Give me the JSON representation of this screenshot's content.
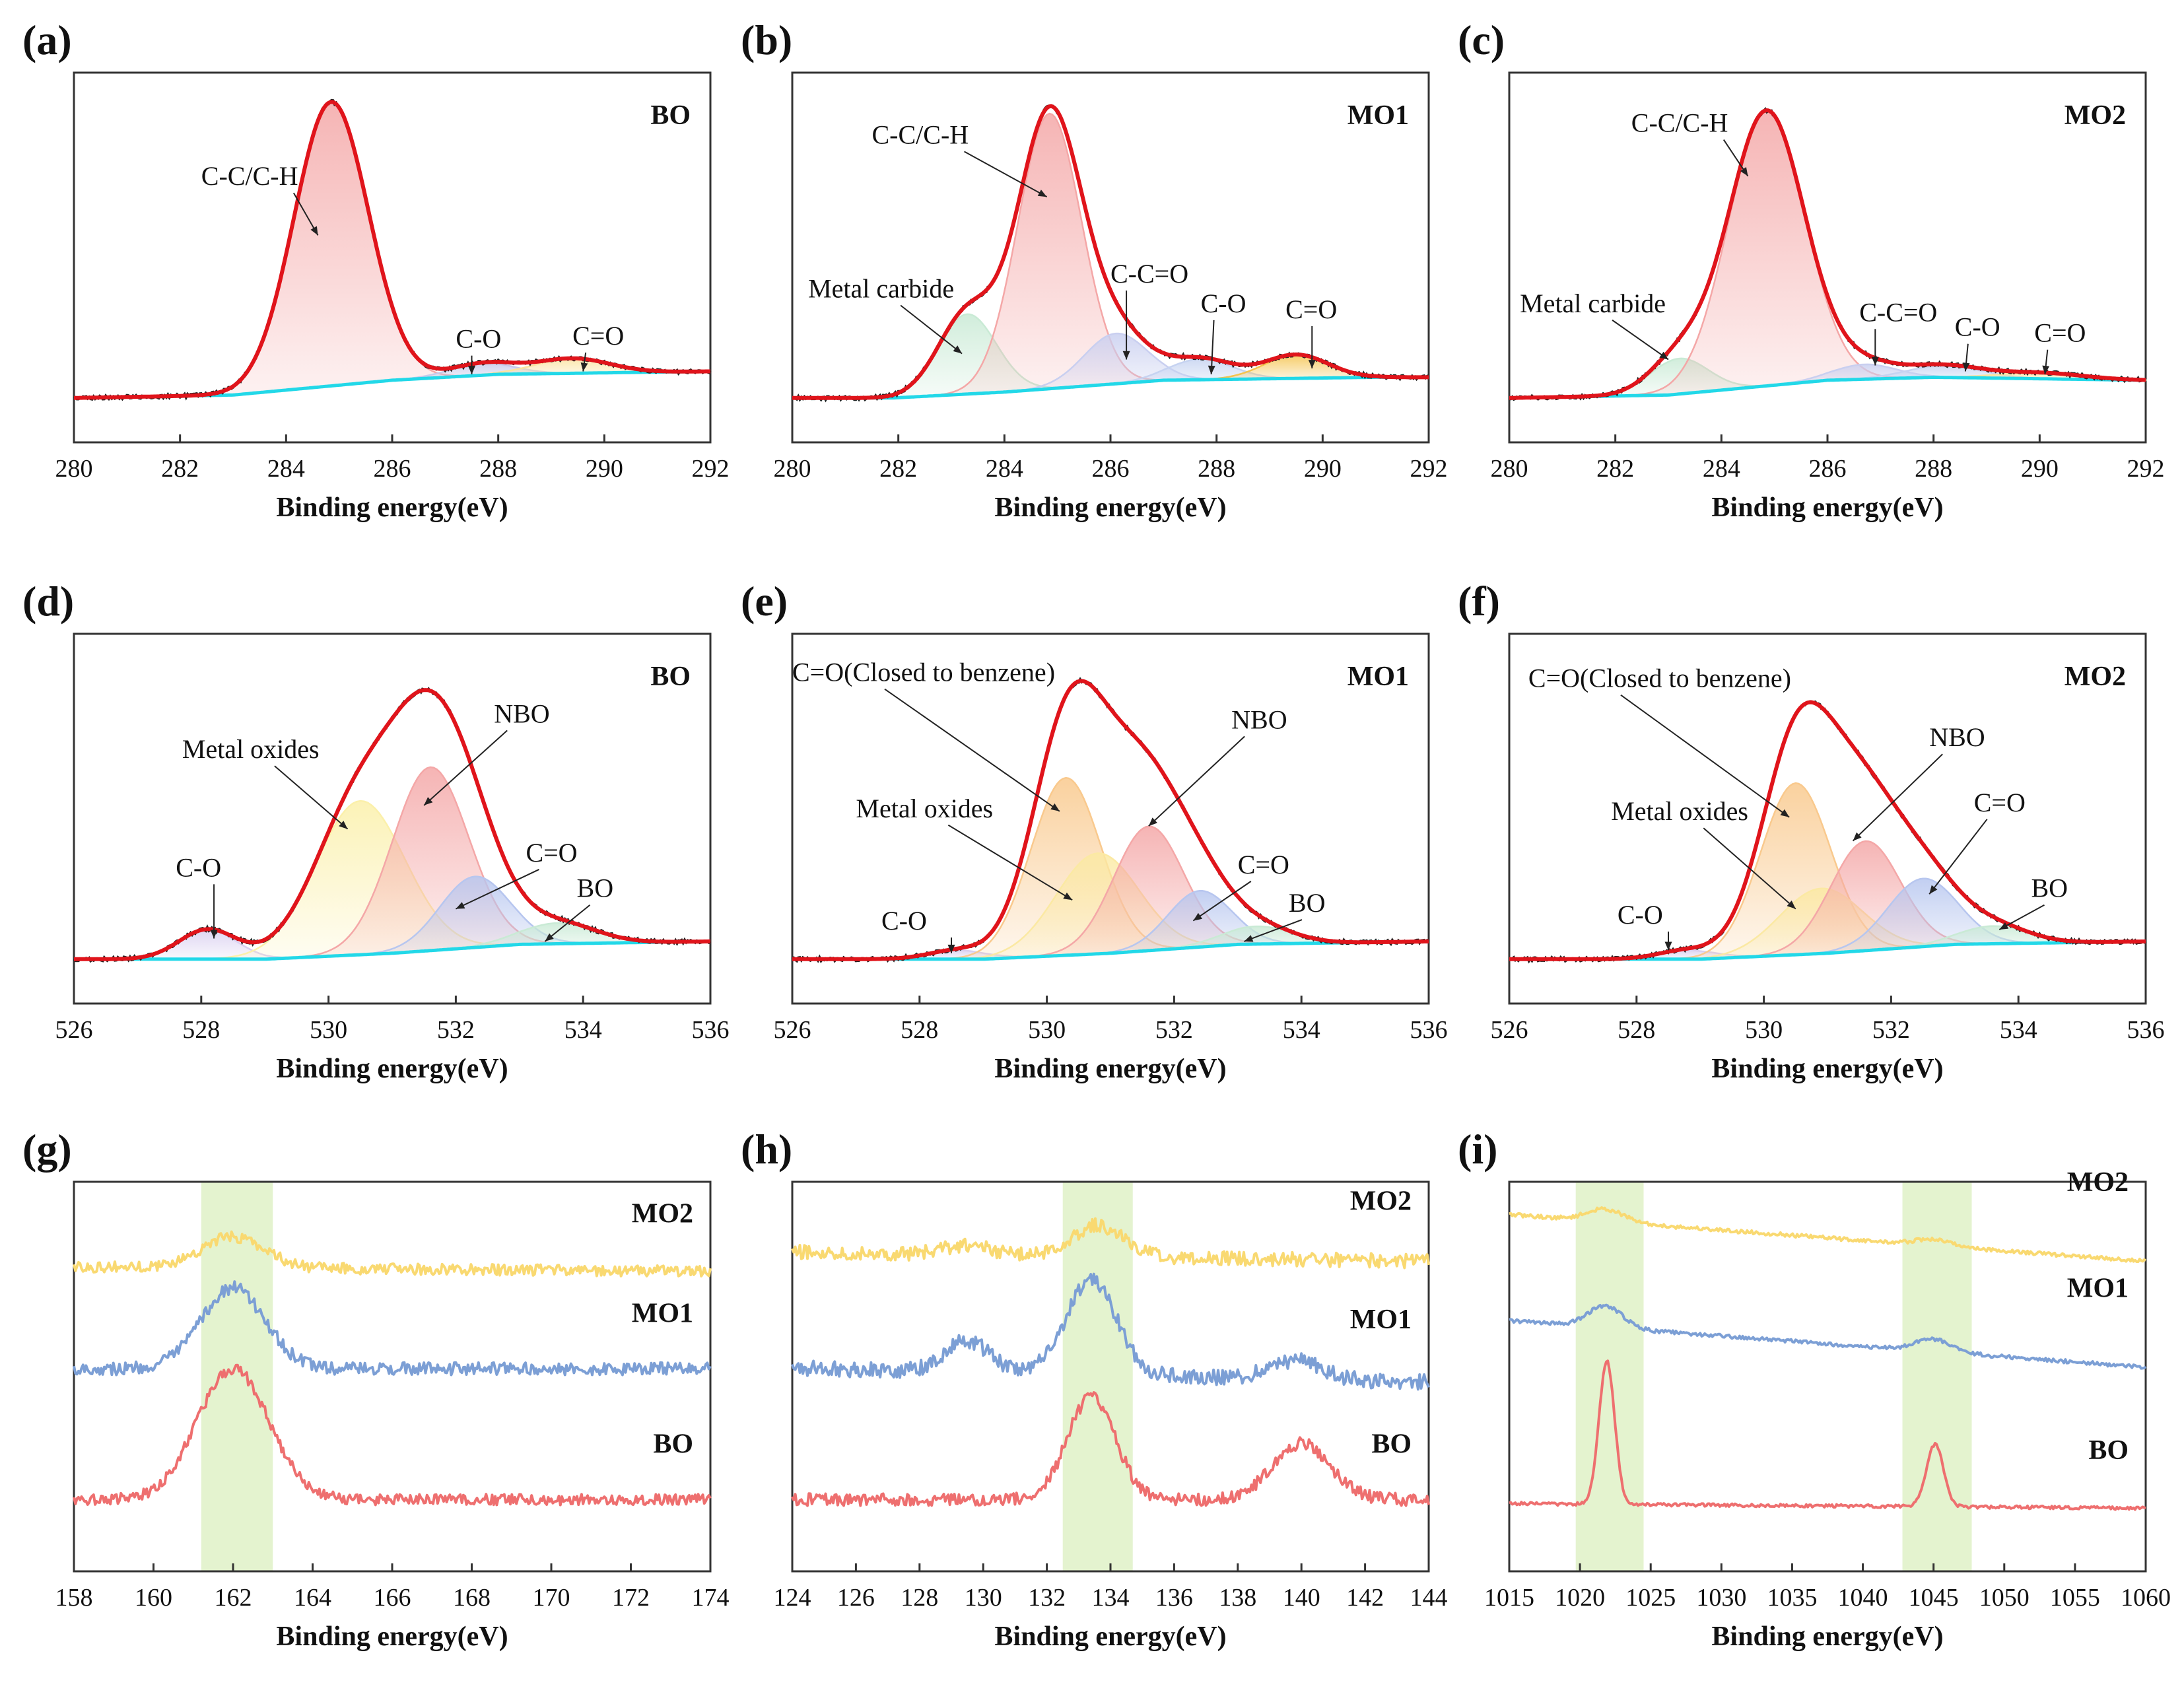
{
  "figure": {
    "colors": {
      "envelope": "#e0141b",
      "raw": "#222222",
      "baseline": "#22d8e8",
      "yellow": "#f9d971",
      "blue": "#7c9fd5",
      "red": "#ee6f6f",
      "band": "#e4f3cf"
    }
  },
  "chart_data": [
    {
      "id": "a",
      "panel": "(a)",
      "type": "line",
      "sample": "BO",
      "xlabel": "Binding energy(eV)",
      "xlim": [
        280,
        292
      ],
      "ticks": [
        "280",
        "282",
        "284",
        "286",
        "288",
        "290",
        "292"
      ],
      "baseline": [
        [
          280,
          0.0
        ],
        [
          283,
          0.01
        ],
        [
          286,
          0.06
        ],
        [
          288,
          0.08
        ],
        [
          292,
          0.09
        ]
      ],
      "components": [
        {
          "name": "C-C/C-H",
          "center": 284.85,
          "height": 0.96,
          "sigma": 0.7,
          "color": "#f4a7a7"
        },
        {
          "name": "C-O",
          "center": 287.7,
          "height": 0.04,
          "sigma": 0.6,
          "color": "#c7c9ea"
        },
        {
          "name": "C=O",
          "center": 289.4,
          "height": 0.05,
          "sigma": 0.7,
          "color": "#fbe3a0"
        }
      ],
      "annotations": [
        {
          "text": "C-C/C-H",
          "x": 282.4,
          "y": 0.72,
          "ax": 284.6,
          "ay": 0.55
        },
        {
          "text": "C-O",
          "x": 287.2,
          "y": 0.17,
          "ax": 287.5,
          "ay": 0.08
        },
        {
          "text": "C=O",
          "x": 289.4,
          "y": 0.18,
          "ax": 289.6,
          "ay": 0.09
        }
      ]
    },
    {
      "id": "b",
      "panel": "(b)",
      "type": "line",
      "sample": "MO1",
      "xlabel": "Binding energy(eV)",
      "xlim": [
        280,
        292
      ],
      "ticks": [
        "280",
        "282",
        "284",
        "286",
        "288",
        "290",
        "292"
      ],
      "baseline": [
        [
          281.9,
          0.0
        ],
        [
          284,
          0.02
        ],
        [
          287,
          0.06
        ],
        [
          291,
          0.07
        ]
      ],
      "components": [
        {
          "name": "Metal carbide",
          "center": 283.3,
          "height": 0.27,
          "sigma": 0.55,
          "color": "#c9ead5"
        },
        {
          "name": "C-C/C-H",
          "center": 284.85,
          "height": 0.93,
          "sigma": 0.6,
          "color": "#f4a7a7"
        },
        {
          "name": "C-C=O",
          "center": 286.1,
          "height": 0.17,
          "sigma": 0.6,
          "color": "#c9cff0"
        },
        {
          "name": "C-O",
          "center": 287.7,
          "height": 0.07,
          "sigma": 0.6,
          "color": "#c6d3f1"
        },
        {
          "name": "C=O",
          "center": 289.5,
          "height": 0.08,
          "sigma": 0.6,
          "color": "#f5c34d"
        }
      ],
      "annotations": [
        {
          "text": "C-C/C-H",
          "x": 281.5,
          "y": 0.86,
          "ax": 284.8,
          "ay": 0.68
        },
        {
          "text": "Metal carbide",
          "x": 280.3,
          "y": 0.34,
          "ax": 283.2,
          "ay": 0.15
        },
        {
          "text": "C-C=O",
          "x": 286.0,
          "y": 0.39,
          "ax": 286.3,
          "ay": 0.13
        },
        {
          "text": "C-O",
          "x": 287.7,
          "y": 0.29,
          "ax": 287.9,
          "ay": 0.08
        },
        {
          "text": "C=O",
          "x": 289.3,
          "y": 0.27,
          "ax": 289.8,
          "ay": 0.1
        }
      ]
    },
    {
      "id": "c",
      "panel": "(c)",
      "type": "line",
      "sample": "MO2",
      "xlabel": "Binding energy(eV)",
      "xlim": [
        280,
        292
      ],
      "ticks": [
        "280",
        "282",
        "284",
        "286",
        "288",
        "290",
        "292"
      ],
      "baseline": [
        [
          280,
          0.0
        ],
        [
          283,
          0.01
        ],
        [
          286,
          0.06
        ],
        [
          288,
          0.07
        ],
        [
          292,
          0.06
        ]
      ],
      "components": [
        {
          "name": "Metal carbide",
          "center": 283.2,
          "height": 0.12,
          "sigma": 0.55,
          "color": "#c9ead5"
        },
        {
          "name": "C-C/C-H",
          "center": 284.85,
          "height": 0.93,
          "sigma": 0.72,
          "color": "#f4a7a7"
        },
        {
          "name": "C-C=O",
          "center": 286.7,
          "height": 0.05,
          "sigma": 0.6,
          "color": "#c9cff0"
        },
        {
          "name": "C-O",
          "center": 288.2,
          "height": 0.04,
          "sigma": 0.7,
          "color": "#c6d3f1"
        },
        {
          "name": "C=O",
          "center": 290.0,
          "height": 0.02,
          "sigma": 0.8,
          "color": "#fbe3a0"
        }
      ],
      "annotations": [
        {
          "text": "C-C/C-H",
          "x": 282.3,
          "y": 0.9,
          "ax": 284.5,
          "ay": 0.75
        },
        {
          "text": "Metal carbide",
          "x": 280.2,
          "y": 0.29,
          "ax": 283.0,
          "ay": 0.13
        },
        {
          "text": "C-C=O",
          "x": 286.6,
          "y": 0.26,
          "ax": 286.9,
          "ay": 0.11
        },
        {
          "text": "C-O",
          "x": 288.4,
          "y": 0.21,
          "ax": 288.6,
          "ay": 0.09
        },
        {
          "text": "C=O",
          "x": 289.9,
          "y": 0.19,
          "ax": 290.1,
          "ay": 0.08
        }
      ]
    },
    {
      "id": "d",
      "panel": "(d)",
      "type": "line",
      "sample": "BO",
      "xlabel": "Binding energy(eV)",
      "xlim": [
        526,
        536
      ],
      "ticks": [
        "526",
        "528",
        "530",
        "532",
        "534",
        "536"
      ],
      "baseline": [
        [
          526,
          0.0
        ],
        [
          529,
          0.0
        ],
        [
          531,
          0.02
        ],
        [
          533,
          0.05
        ],
        [
          536,
          0.06
        ]
      ],
      "components": [
        {
          "name": "C-O",
          "center": 528.1,
          "height": 0.1,
          "sigma": 0.45,
          "color": "#d9cff0"
        },
        {
          "name": "Metal oxides",
          "center": 530.5,
          "height": 0.52,
          "sigma": 0.7,
          "color": "#fbf0aa"
        },
        {
          "name": "NBO",
          "center": 531.6,
          "height": 0.62,
          "sigma": 0.6,
          "color": "#f4a7a7"
        },
        {
          "name": "C=O",
          "center": 532.3,
          "height": 0.24,
          "sigma": 0.55,
          "color": "#b7c6ef"
        },
        {
          "name": "BO",
          "center": 533.6,
          "height": 0.07,
          "sigma": 0.6,
          "color": "#c9ead5"
        }
      ],
      "annotations": [
        {
          "text": "C-O",
          "x": 527.6,
          "y": 0.28,
          "ax": 528.2,
          "ay": 0.07
        },
        {
          "text": "Metal oxides",
          "x": 527.7,
          "y": 0.68,
          "ax": 530.3,
          "ay": 0.44
        },
        {
          "text": "NBO",
          "x": 532.6,
          "y": 0.8,
          "ax": 531.5,
          "ay": 0.52
        },
        {
          "text": "C=O",
          "x": 533.1,
          "y": 0.33,
          "ax": 532.0,
          "ay": 0.17
        },
        {
          "text": "BO",
          "x": 533.9,
          "y": 0.21,
          "ax": 533.4,
          "ay": 0.06
        }
      ]
    },
    {
      "id": "e",
      "panel": "(e)",
      "type": "line",
      "sample": "MO1",
      "xlabel": "Binding energy(eV)",
      "xlim": [
        526,
        536
      ],
      "ticks": [
        "526",
        "528",
        "530",
        "532",
        "534",
        "536"
      ],
      "baseline": [
        [
          526,
          0.0
        ],
        [
          529,
          0.0
        ],
        [
          531,
          0.02
        ],
        [
          533,
          0.05
        ],
        [
          536,
          0.06
        ]
      ],
      "components": [
        {
          "name": "C-O",
          "center": 528.6,
          "height": 0.03,
          "sigma": 0.45,
          "color": "#d9cff0"
        },
        {
          "name": "C=O(Closed to benzene)",
          "center": 530.3,
          "height": 0.6,
          "sigma": 0.55,
          "color": "#f9c98d"
        },
        {
          "name": "Metal oxides",
          "center": 530.8,
          "height": 0.34,
          "sigma": 0.65,
          "color": "#fbe9a3"
        },
        {
          "name": "NBO",
          "center": 531.6,
          "height": 0.42,
          "sigma": 0.55,
          "color": "#f4a7a7"
        },
        {
          "name": "C=O",
          "center": 532.4,
          "height": 0.19,
          "sigma": 0.5,
          "color": "#b7c6ef"
        },
        {
          "name": "BO",
          "center": 533.3,
          "height": 0.06,
          "sigma": 0.55,
          "color": "#c9ead5"
        }
      ],
      "annotations": [
        {
          "text": "C=O(Closed to benzene)",
          "x": 526.0,
          "y": 0.94,
          "ax": 530.2,
          "ay": 0.5
        },
        {
          "text": "Metal oxides",
          "x": 527.0,
          "y": 0.48,
          "ax": 530.4,
          "ay": 0.2
        },
        {
          "text": "NBO",
          "x": 532.9,
          "y": 0.78,
          "ax": 531.6,
          "ay": 0.45
        },
        {
          "text": "C=O",
          "x": 533.0,
          "y": 0.29,
          "ax": 532.3,
          "ay": 0.13
        },
        {
          "text": "BO",
          "x": 533.8,
          "y": 0.16,
          "ax": 533.1,
          "ay": 0.06
        },
        {
          "text": "C-O",
          "x": 527.4,
          "y": 0.1,
          "ax": 528.5,
          "ay": 0.02
        }
      ]
    },
    {
      "id": "f",
      "panel": "(f)",
      "type": "line",
      "sample": "MO2",
      "xlabel": "Binding energy(eV)",
      "xlim": [
        526,
        536
      ],
      "ticks": [
        "526",
        "528",
        "530",
        "532",
        "534",
        "536"
      ],
      "baseline": [
        [
          526,
          0.0
        ],
        [
          529,
          0.0
        ],
        [
          531,
          0.02
        ],
        [
          533,
          0.05
        ],
        [
          536,
          0.06
        ]
      ],
      "components": [
        {
          "name": "C-O",
          "center": 528.8,
          "height": 0.03,
          "sigma": 0.45,
          "color": "#d9cff0"
        },
        {
          "name": "C=O(Closed to benzene)",
          "center": 530.5,
          "height": 0.58,
          "sigma": 0.55,
          "color": "#f9c98d"
        },
        {
          "name": "Metal oxides",
          "center": 530.9,
          "height": 0.22,
          "sigma": 0.65,
          "color": "#fbe9a3"
        },
        {
          "name": "NBO",
          "center": 531.6,
          "height": 0.37,
          "sigma": 0.55,
          "color": "#f4a7a7"
        },
        {
          "name": "C=O",
          "center": 532.5,
          "height": 0.23,
          "sigma": 0.55,
          "color": "#b7c6ef"
        },
        {
          "name": "BO",
          "center": 533.6,
          "height": 0.06,
          "sigma": 0.55,
          "color": "#c9ead5"
        }
      ],
      "annotations": [
        {
          "text": "C=O(Closed to benzene)",
          "x": 526.3,
          "y": 0.92,
          "ax": 530.4,
          "ay": 0.48
        },
        {
          "text": "Metal oxides",
          "x": 527.6,
          "y": 0.47,
          "ax": 530.5,
          "ay": 0.17
        },
        {
          "text": "NBO",
          "x": 532.6,
          "y": 0.72,
          "ax": 531.4,
          "ay": 0.4
        },
        {
          "text": "C=O",
          "x": 533.3,
          "y": 0.5,
          "ax": 532.6,
          "ay": 0.22
        },
        {
          "text": "BO",
          "x": 534.2,
          "y": 0.21,
          "ax": 533.7,
          "ay": 0.1
        },
        {
          "text": "C-O",
          "x": 527.7,
          "y": 0.12,
          "ax": 528.5,
          "ay": 0.03
        }
      ]
    },
    {
      "id": "g",
      "panel": "(g)",
      "type": "line",
      "spectra": true,
      "xlabel": "Binding energy(eV)",
      "xlim": [
        158,
        174
      ],
      "ticks": [
        "158",
        "160",
        "162",
        "164",
        "166",
        "168",
        "170",
        "172",
        "174"
      ],
      "bands": [
        [
          161.2,
          163.0
        ]
      ],
      "series": [
        {
          "name": "MO2",
          "color": "#f9d971",
          "offset": 0.82,
          "slope": -0.03,
          "noise": 0.035,
          "peaks": [
            [
              162.0,
              0.1,
              0.8
            ]
          ]
        },
        {
          "name": "MO1",
          "color": "#7c9fd5",
          "offset": 0.5,
          "slope": 0.0,
          "noise": 0.04,
          "peaks": [
            [
              162.0,
              0.26,
              0.8
            ]
          ]
        },
        {
          "name": "BO",
          "color": "#ee6f6f",
          "offset": 0.08,
          "slope": 0.0,
          "noise": 0.035,
          "peaks": [
            [
              162.0,
              0.42,
              0.9
            ]
          ]
        }
      ]
    },
    {
      "id": "h",
      "panel": "(h)",
      "type": "line",
      "spectra": true,
      "xlabel": "Binding energy(eV)",
      "xlim": [
        124,
        144
      ],
      "ticks": [
        "124",
        "126",
        "128",
        "130",
        "132",
        "134",
        "136",
        "138",
        "140",
        "142",
        "144"
      ],
      "bands": [
        [
          132.5,
          134.7
        ]
      ],
      "series": [
        {
          "name": "MO2",
          "color": "#f9d971",
          "offset": 0.86,
          "slope": -0.06,
          "noise": 0.045,
          "peaks": [
            [
              133.6,
              0.1,
              0.8
            ],
            [
              129.5,
              0.03,
              0.7
            ]
          ]
        },
        {
          "name": "MO1",
          "color": "#7c9fd5",
          "offset": 0.48,
          "slope": -0.09,
          "noise": 0.05,
          "peaks": [
            [
              133.4,
              0.3,
              0.8
            ],
            [
              129.5,
              0.1,
              0.7
            ],
            [
              139.8,
              0.06,
              0.8
            ]
          ]
        },
        {
          "name": "BO",
          "color": "#ee6f6f",
          "offset": 0.08,
          "slope": 0.0,
          "noise": 0.04,
          "peaks": [
            [
              133.4,
              0.33,
              0.75
            ],
            [
              140.0,
              0.18,
              0.9
            ]
          ]
        }
      ]
    },
    {
      "id": "i",
      "panel": "(i)",
      "type": "line",
      "spectra": true,
      "xlabel": "Binding energy(eV)",
      "xlim": [
        1015,
        1060
      ],
      "ticks": [
        "1015",
        "1020",
        "1025",
        "1030",
        "1035",
        "1040",
        "1045",
        "1050",
        "1055",
        "1060"
      ],
      "bands": [
        [
          1019.7,
          1024.5
        ],
        [
          1042.8,
          1047.7
        ]
      ],
      "series": [
        {
          "name": "MO2",
          "color": "#f9d971",
          "offset": 0.92,
          "slope": -0.3,
          "noise": 0.012,
          "peaks": [
            [
              1021.8,
              0.04,
              1.3
            ],
            [
              1045.0,
              0.02,
              1.3
            ]
          ]
        },
        {
          "name": "MO1",
          "color": "#7c9fd5",
          "offset": 0.58,
          "slope": -0.3,
          "noise": 0.012,
          "peaks": [
            [
              1021.8,
              0.07,
              1.2
            ],
            [
              1045.0,
              0.04,
              1.3
            ]
          ]
        },
        {
          "name": "BO",
          "color": "#ee6f6f",
          "offset": 0.06,
          "slope": -0.03,
          "noise": 0.01,
          "peaks": [
            [
              1021.9,
              0.46,
              0.55
            ],
            [
              1045.1,
              0.2,
              0.6
            ]
          ]
        }
      ]
    }
  ]
}
